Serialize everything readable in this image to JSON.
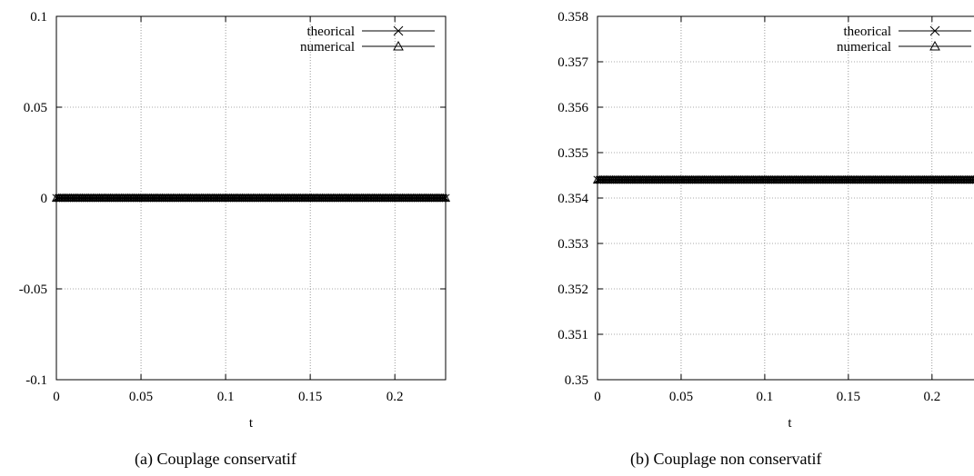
{
  "chart_data": [
    {
      "type": "line",
      "caption": "(a)  Couplage conservatif",
      "xlabel": "t",
      "ylabel": "",
      "xlim": [
        0,
        0.23
      ],
      "ylim": [
        -0.1,
        0.1
      ],
      "xticks": [
        "0",
        "0.05",
        "0.1",
        "0.15",
        "0.2"
      ],
      "xtick_values": [
        0,
        0.05,
        0.1,
        0.15,
        0.2
      ],
      "yticks": [
        "-0.1",
        "-0.05",
        "0",
        "0.05",
        "0.1"
      ],
      "ytick_values": [
        -0.1,
        -0.05,
        0,
        0.05,
        0.1
      ],
      "grid": true,
      "legend_position": "top-right",
      "series": [
        {
          "name": "theorical",
          "marker": "cross",
          "color": "#000000",
          "x": [
            0,
            0.23
          ],
          "y": [
            0,
            0
          ]
        },
        {
          "name": "numerical",
          "marker": "triangle",
          "color": "#000000",
          "x": [
            0,
            0.23
          ],
          "y": [
            0,
            0
          ]
        }
      ]
    },
    {
      "type": "line",
      "caption": "(b)  Couplage non conservatif",
      "xlabel": "t",
      "ylabel": "",
      "xlim": [
        0,
        0.23
      ],
      "ylim": [
        0.35,
        0.358
      ],
      "xticks": [
        "0",
        "0.05",
        "0.1",
        "0.15",
        "0.2"
      ],
      "xtick_values": [
        0,
        0.05,
        0.1,
        0.15,
        0.2
      ],
      "yticks": [
        "0.35",
        "0.351",
        "0.352",
        "0.353",
        "0.354",
        "0.355",
        "0.356",
        "0.357",
        "0.358"
      ],
      "ytick_values": [
        0.35,
        0.351,
        0.352,
        0.353,
        0.354,
        0.355,
        0.356,
        0.357,
        0.358
      ],
      "grid": true,
      "legend_position": "top-right",
      "series": [
        {
          "name": "theorical",
          "marker": "cross",
          "color": "#000000",
          "x": [
            0,
            0.23
          ],
          "y": [
            0.3544,
            0.3544
          ]
        },
        {
          "name": "numerical",
          "marker": "triangle",
          "color": "#000000",
          "x": [
            0,
            0.23
          ],
          "y": [
            0.3544,
            0.3544
          ]
        }
      ]
    }
  ]
}
